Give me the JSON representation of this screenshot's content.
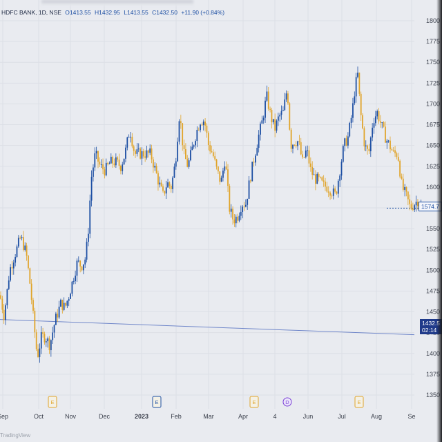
{
  "legend": {
    "symbol": "HDFC BANK, 1D, NSE",
    "open": "O1413.55",
    "high": "H1432.95",
    "low": "L1413.55",
    "close": "C1432.50",
    "change": "+11.90 (+0.84%)"
  },
  "price_axis": {
    "labels": [
      "1800",
      "1775",
      "1750",
      "1725",
      "1700",
      "1675",
      "1650",
      "1625",
      "1600",
      "1575",
      "1550",
      "1525",
      "1500",
      "1475",
      "1450",
      "1425",
      "1400",
      "1375",
      "1350"
    ],
    "current_price_tag": "1574.7",
    "horizontal_line_tag": [
      "1432.5",
      "02:14"
    ]
  },
  "time_axis": {
    "labels": [
      "Sep",
      "Oct",
      "Nov",
      "Dec",
      "2023",
      "Feb",
      "Mar",
      "Apr",
      "4",
      "Jun",
      "Jul",
      "Aug",
      "Se"
    ]
  },
  "event_markers": [
    {
      "type": "earnings",
      "glyph": "E",
      "color": "#e0a42a"
    },
    {
      "type": "earnings",
      "glyph": "E",
      "color": "#1d4fa3"
    },
    {
      "type": "earnings",
      "glyph": "E",
      "color": "#e0a42a"
    },
    {
      "type": "dividend",
      "glyph": "D",
      "color": "#7a3fd6"
    },
    {
      "type": "earnings",
      "glyph": "E",
      "color": "#e0a42a"
    }
  ],
  "colors": {
    "up": "#1d4fa3",
    "down": "#e0a42a",
    "background": "#e9ebf0",
    "grid": "#dcdfe6",
    "hline": "#6f86c9"
  },
  "chart_data": {
    "type": "candlestick",
    "title": "HDFC BANK, 1D, NSE",
    "ylim": [
      1340,
      1810
    ],
    "xlabel": "",
    "ylabel": "",
    "grid": true,
    "horizontal_line": 1432.5,
    "last_price": 1574.7,
    "anchors": [
      [
        0,
        1470
      ],
      [
        6,
        1445
      ],
      [
        14,
        1500
      ],
      [
        22,
        1520
      ],
      [
        30,
        1540
      ],
      [
        38,
        1520
      ],
      [
        44,
        1480
      ],
      [
        48,
        1445
      ],
      [
        54,
        1395
      ],
      [
        60,
        1420
      ],
      [
        66,
        1420
      ],
      [
        72,
        1410
      ],
      [
        80,
        1440
      ],
      [
        88,
        1460
      ],
      [
        94,
        1455
      ],
      [
        100,
        1470
      ],
      [
        106,
        1490
      ],
      [
        112,
        1510
      ],
      [
        118,
        1505
      ],
      [
        124,
        1515
      ],
      [
        128,
        1550
      ],
      [
        132,
        1610
      ],
      [
        138,
        1640
      ],
      [
        145,
        1625
      ],
      [
        152,
        1620
      ],
      [
        160,
        1630
      ],
      [
        168,
        1630
      ],
      [
        175,
        1625
      ],
      [
        181,
        1640
      ],
      [
        188,
        1670
      ],
      [
        195,
        1640
      ],
      [
        202,
        1640
      ],
      [
        210,
        1640
      ],
      [
        218,
        1640
      ],
      [
        225,
        1620
      ],
      [
        230,
        1605
      ],
      [
        236,
        1590
      ],
      [
        242,
        1605
      ],
      [
        248,
        1600
      ],
      [
        254,
        1630
      ],
      [
        260,
        1690
      ],
      [
        266,
        1640
      ],
      [
        272,
        1625
      ],
      [
        278,
        1645
      ],
      [
        284,
        1665
      ],
      [
        290,
        1680
      ],
      [
        296,
        1680
      ],
      [
        302,
        1650
      ],
      [
        308,
        1640
      ],
      [
        314,
        1620
      ],
      [
        320,
        1605
      ],
      [
        326,
        1635
      ],
      [
        332,
        1575
      ],
      [
        338,
        1560
      ],
      [
        344,
        1565
      ],
      [
        350,
        1580
      ],
      [
        356,
        1580
      ],
      [
        362,
        1610
      ],
      [
        368,
        1635
      ],
      [
        374,
        1660
      ],
      [
        380,
        1680
      ],
      [
        386,
        1710
      ],
      [
        392,
        1685
      ],
      [
        398,
        1670
      ],
      [
        404,
        1685
      ],
      [
        410,
        1690
      ],
      [
        416,
        1720
      ],
      [
        418,
        1690
      ],
      [
        421,
        1650
      ],
      [
        426,
        1655
      ],
      [
        432,
        1655
      ],
      [
        438,
        1630
      ],
      [
        444,
        1645
      ],
      [
        450,
        1620
      ],
      [
        456,
        1610
      ],
      [
        462,
        1608
      ],
      [
        468,
        1602
      ],
      [
        474,
        1600
      ],
      [
        480,
        1595
      ],
      [
        486,
        1590
      ],
      [
        492,
        1620
      ],
      [
        498,
        1650
      ],
      [
        504,
        1660
      ],
      [
        510,
        1690
      ],
      [
        514,
        1720
      ],
      [
        518,
        1735
      ],
      [
        522,
        1690
      ],
      [
        528,
        1650
      ],
      [
        534,
        1640
      ],
      [
        540,
        1680
      ],
      [
        546,
        1690
      ],
      [
        552,
        1675
      ],
      [
        558,
        1660
      ],
      [
        564,
        1650
      ],
      [
        570,
        1640
      ],
      [
        576,
        1640
      ],
      [
        582,
        1600
      ],
      [
        588,
        1590
      ],
      [
        594,
        1575
      ],
      [
        600,
        1580
      ],
      [
        606,
        1585
      ],
      [
        610,
        1578
      ]
    ]
  }
}
